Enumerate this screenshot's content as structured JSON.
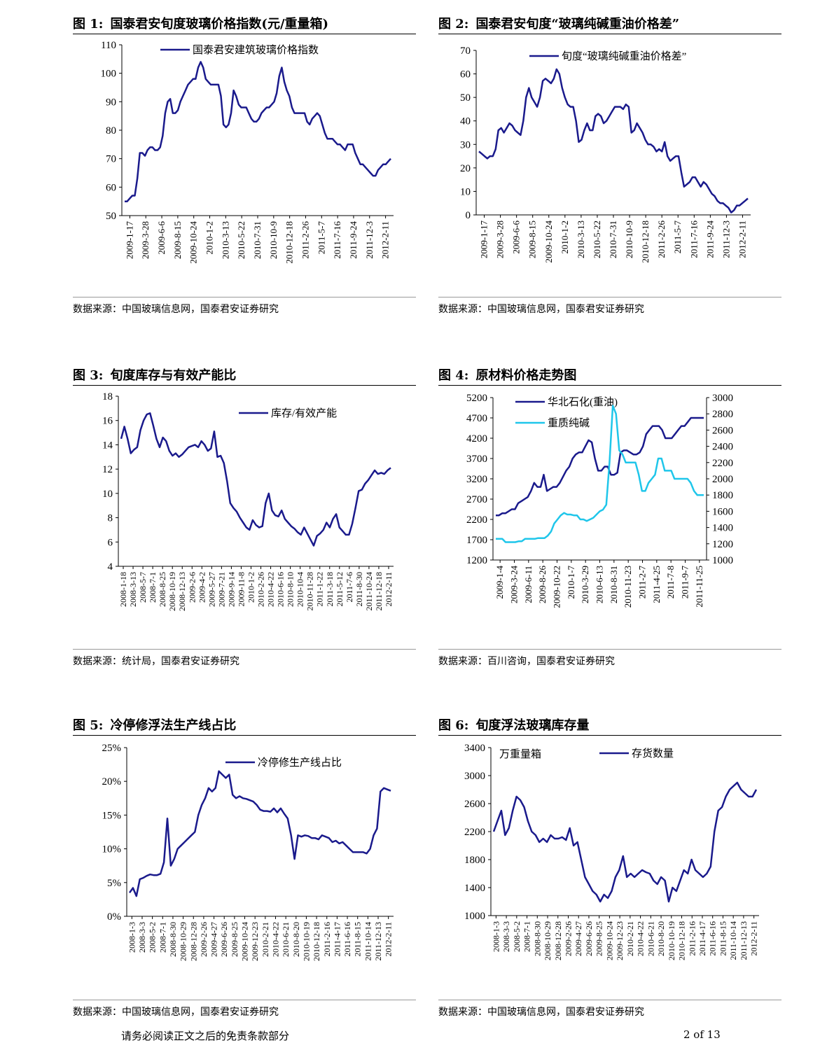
{
  "page": {
    "footer_disclaimer": "请务必阅读正文之后的免责条款部分",
    "page_number": "2 of 13"
  },
  "charts": [
    {
      "label": "图 1:",
      "title": "国泰君安旬度玻璃价格指数(元/重量箱)",
      "source": "数据来源：中国玻璃信息网，国泰君安证券研究"
    },
    {
      "label": "图 2:",
      "title": "国泰君安旬度“玻璃纯碱重油价格差”",
      "source": "数据来源：中国玻璃信息网，国泰君安证券研究"
    },
    {
      "label": "图 3:",
      "title": "旬度库存与有效产能比",
      "source": "数据来源：统计局，国泰君安证券研究"
    },
    {
      "label": "图 4:",
      "title": "原材料价格走势图",
      "source": "数据来源：百川咨询，国泰君安证券研究"
    },
    {
      "label": "图 5:",
      "title": "冷停修浮法生产线占比",
      "source": "数据来源：中国玻璃信息网，国泰君安证券研究"
    },
    {
      "label": "图 6:",
      "title": "旬度浮法玻璃库存量",
      "source": "数据来源：中国玻璃信息网，国泰君安证券研究"
    }
  ],
  "chart_data": [
    {
      "type": "line",
      "yticks": [
        "50",
        "60",
        "70",
        "80",
        "90",
        "100",
        "110"
      ],
      "ylim": [
        50,
        110
      ],
      "xticks": [
        "2009-1-17",
        "2009-3-28",
        "2009-6-6",
        "2009-8-15",
        "2009-10-24",
        "2010-1-2",
        "2010-3-13",
        "2010-5-22",
        "2010-7-31",
        "2010-10-9",
        "2010-12-18",
        "2011-2-26",
        "2011-5-7",
        "2011-7-16",
        "2011-9-24",
        "2011-12-3",
        "2012-2-11"
      ],
      "series": [
        {
          "name": "国泰君安建筑玻璃价格指数",
          "color": "#1a1a8c",
          "values": [
            55,
            55,
            56,
            57,
            57,
            63,
            72,
            72,
            71,
            73,
            74,
            74,
            73,
            73,
            74,
            78,
            86,
            90,
            91,
            86,
            86,
            87,
            90,
            92,
            94,
            96,
            97,
            98,
            98,
            102,
            104,
            102,
            98,
            97,
            96,
            96,
            96,
            96,
            92,
            82,
            81,
            82,
            86,
            94,
            92,
            89,
            88,
            88,
            88,
            86,
            84,
            83,
            83,
            84,
            86,
            87,
            88,
            88,
            89,
            90,
            93,
            99,
            102,
            97,
            94,
            92,
            88,
            86,
            86,
            86,
            86,
            86,
            83,
            82,
            84,
            85,
            86,
            85,
            82,
            79,
            77,
            77,
            77,
            76,
            75,
            75,
            74,
            73,
            75,
            75,
            75,
            72,
            70,
            68,
            68,
            67,
            66,
            65,
            64,
            64,
            66,
            67,
            68,
            68,
            69,
            70
          ]
        }
      ]
    },
    {
      "type": "line",
      "yticks": [
        "0",
        "10",
        "20",
        "30",
        "40",
        "50",
        "60",
        "70"
      ],
      "ylim": [
        0,
        70
      ],
      "xticks": [
        "2009-1-17",
        "2009-3-28",
        "2009-6-6",
        "2009-8-15",
        "2009-10-24",
        "2010-1-2",
        "2010-3-13",
        "2010-5-22",
        "2010-7-31",
        "2010-10-9",
        "2010-12-18",
        "2011-2-26",
        "2011-5-7",
        "2011-7-16",
        "2011-9-24",
        "2011-12-3",
        "2012-2-11"
      ],
      "series": [
        {
          "name": "旬度“玻璃纯碱重油价格差”",
          "color": "#1a1a8c",
          "values": [
            27,
            26,
            25,
            24,
            25,
            25,
            28,
            36,
            37,
            35,
            37,
            39,
            38,
            36,
            35,
            34,
            40,
            50,
            54,
            50,
            48,
            46,
            50,
            57,
            58,
            57,
            56,
            58,
            62,
            60,
            54,
            50,
            47,
            46,
            46,
            40,
            31,
            32,
            36,
            39,
            36,
            36,
            42,
            43,
            42,
            39,
            40,
            42,
            44,
            46,
            46,
            46,
            45,
            47,
            46,
            35,
            36,
            39,
            37,
            35,
            32,
            30,
            30,
            29,
            27,
            28,
            27,
            31,
            25,
            23,
            24,
            25,
            25,
            18,
            12,
            13,
            14,
            16,
            16,
            14,
            12,
            14,
            13,
            11,
            9,
            8,
            6,
            5,
            5,
            4,
            3,
            1,
            2,
            4,
            4,
            5,
            6,
            7
          ]
        }
      ]
    },
    {
      "type": "line",
      "yticks": [
        "4",
        "6",
        "8",
        "10",
        "12",
        "14",
        "16",
        "18"
      ],
      "ylim": [
        4,
        18
      ],
      "xticks": [
        "2008-1-18",
        "2008-3-13",
        "2008-5-7",
        "2008-7-1",
        "2008-8-25",
        "2008-10-19",
        "2008-12-13",
        "2009-2-6",
        "2009-4-2",
        "2009-5-27",
        "2009-7-21",
        "2009-9-14",
        "2009-11-8",
        "2010-1-2",
        "2010-2-26",
        "2010-4-22",
        "2010-6-16",
        "2010-8-10",
        "2010-10-4",
        "2010-11-28",
        "2011-1-22",
        "2011-3-18",
        "2011-5-12",
        "2011-7-6",
        "2011-8-30",
        "2011-10-24",
        "2011-12-18",
        "2012-2-11"
      ],
      "series": [
        {
          "name": "库存/有效产能",
          "color": "#1a1a8c",
          "values": [
            14.5,
            15.5,
            14.5,
            13.3,
            13.6,
            13.8,
            15.2,
            16.0,
            16.5,
            16.6,
            15.6,
            14.5,
            13.8,
            14.6,
            14.3,
            13.5,
            13.1,
            13.3,
            13.0,
            13.2,
            13.5,
            13.8,
            13.9,
            14.0,
            13.8,
            14.3,
            14.0,
            13.5,
            13.7,
            15.1,
            13.0,
            13.1,
            12.5,
            11.0,
            9.2,
            8.8,
            8.5,
            8.0,
            7.6,
            7.2,
            7.0,
            7.8,
            7.4,
            7.2,
            7.3,
            9.2,
            10.0,
            8.6,
            8.2,
            8.1,
            8.6,
            7.9,
            7.6,
            7.3,
            7.1,
            6.8,
            6.6,
            7.2,
            6.7,
            6.2,
            5.7,
            6.5,
            6.7,
            7.0,
            7.6,
            7.2,
            7.9,
            8.3,
            7.2,
            6.9,
            6.6,
            6.6,
            7.5,
            8.8,
            10.2,
            10.3,
            10.8,
            11.1,
            11.5,
            11.9,
            11.6,
            11.7,
            11.6,
            11.9,
            12.1
          ]
        }
      ]
    },
    {
      "type": "line",
      "dual_axis": true,
      "yticks": [
        "1200",
        "1700",
        "2200",
        "2700",
        "3200",
        "3700",
        "4200",
        "4700",
        "5200"
      ],
      "ylim": [
        1200,
        5200
      ],
      "yticks_right": [
        "1000",
        "1200",
        "1400",
        "1600",
        "1800",
        "2000",
        "2200",
        "2400",
        "2600",
        "2800",
        "3000"
      ],
      "ylim_right": [
        1000,
        3000
      ],
      "xticks": [
        "2009-1-4",
        "2009-3-24",
        "2009-6-11",
        "2009-8-26",
        "2009-10-22",
        "2010-1-7",
        "2010-3-29",
        "2010-6-13",
        "2010-8-31",
        "2010-11-23",
        "2011-2-7",
        "2011-4-25",
        "2011-7-8",
        "2011-9-7",
        "2011-11-25"
      ],
      "series": [
        {
          "name": "华北石化(重油)",
          "color": "#1a1a8c",
          "axis": "left",
          "values": [
            2300,
            2300,
            2350,
            2350,
            2400,
            2450,
            2450,
            2600,
            2650,
            2700,
            2750,
            2900,
            3100,
            3000,
            3000,
            3300,
            2900,
            2950,
            3000,
            3000,
            3100,
            3250,
            3400,
            3500,
            3700,
            3800,
            3850,
            3850,
            4000,
            4150,
            4100,
            3700,
            3400,
            3400,
            3500,
            3500,
            3300,
            3300,
            3350,
            3850,
            3900,
            3900,
            3850,
            3800,
            3800,
            3850,
            4000,
            4300,
            4400,
            4500,
            4500,
            4500,
            4400,
            4200,
            4200,
            4200,
            4300,
            4400,
            4500,
            4500,
            4600,
            4700,
            4700,
            4700,
            4700,
            4700
          ]
        },
        {
          "name": "重质纯碱",
          "color": "#1fc6ea",
          "axis": "right",
          "values": [
            1260,
            1260,
            1260,
            1220,
            1220,
            1220,
            1220,
            1230,
            1230,
            1260,
            1260,
            1260,
            1260,
            1270,
            1270,
            1270,
            1300,
            1350,
            1450,
            1500,
            1550,
            1580,
            1560,
            1560,
            1550,
            1550,
            1500,
            1500,
            1480,
            1500,
            1520,
            1560,
            1600,
            1620,
            1680,
            2200,
            2900,
            2800,
            2350,
            2300,
            2200,
            2200,
            2200,
            2200,
            2050,
            1850,
            1850,
            1950,
            2000,
            2050,
            2250,
            2250,
            2100,
            2100,
            2100,
            2000,
            2000,
            2000,
            2000,
            2000,
            1950,
            1850,
            1800,
            1800,
            1800
          ]
        }
      ]
    },
    {
      "type": "line",
      "yticks": [
        "0%",
        "5%",
        "10%",
        "15%",
        "20%",
        "25%"
      ],
      "ylim": [
        0,
        25
      ],
      "xticks": [
        "2008-1-3",
        "2008-3-3",
        "2008-5-2",
        "2008-7-1",
        "2008-8-30",
        "2008-10-29",
        "2008-12-28",
        "2009-2-26",
        "2009-4-27",
        "2009-6-26",
        "2009-8-25",
        "2009-10-24",
        "2009-12-23",
        "2010-2-21",
        "2010-4-22",
        "2010-6-21",
        "2010-8-20",
        "2010-10-19",
        "2010-12-18",
        "2011-2-16",
        "2011-4-17",
        "2011-6-16",
        "2011-8-15",
        "2011-10-14",
        "2011-12-13",
        "2012-2-11"
      ],
      "series": [
        {
          "name": "冷停修生产线占比",
          "color": "#1a1a8c",
          "values": [
            3.5,
            4.2,
            3.0,
            5.5,
            5.7,
            6.0,
            6.2,
            6.1,
            6.1,
            6.3,
            8.0,
            14.5,
            7.5,
            8.5,
            10.0,
            10.5,
            11.0,
            11.5,
            12.0,
            12.5,
            15.0,
            16.5,
            17.5,
            19.0,
            18.5,
            19.0,
            21.5,
            21.0,
            20.5,
            21.0,
            18.0,
            17.5,
            17.8,
            17.5,
            17.4,
            17.2,
            17.0,
            16.5,
            15.8,
            15.6,
            15.6,
            15.5,
            16.0,
            15.4,
            16.0,
            15.2,
            14.5,
            12.0,
            8.5,
            12.0,
            11.8,
            12.0,
            11.9,
            11.6,
            11.6,
            11.4,
            12.0,
            11.8,
            11.6,
            11.0,
            11.2,
            10.8,
            11.0,
            10.5,
            10.0,
            9.5,
            9.5,
            9.5,
            9.5,
            9.3,
            10.0,
            12.0,
            13.0,
            18.5,
            19.0,
            18.8,
            18.6
          ]
        }
      ]
    },
    {
      "type": "line",
      "yticks": [
        "1000",
        "1400",
        "1800",
        "2200",
        "2600",
        "3000",
        "3400"
      ],
      "ylim": [
        1000,
        3400
      ],
      "unit_label": "万重量箱",
      "xticks": [
        "2008-1-3",
        "2008-3-3",
        "2008-5-2",
        "2008-7-1",
        "2008-8-30",
        "2008-10-29",
        "2008-12-28",
        "2009-2-26",
        "2009-4-27",
        "2009-6-26",
        "2009-8-25",
        "2009-10-24",
        "2009-12-23",
        "2010-2-21",
        "2010-4-22",
        "2010-6-21",
        "2010-8-20",
        "2010-10-19",
        "2010-12-18",
        "2011-2-16",
        "2011-4-17",
        "2011-6-16",
        "2011-8-15",
        "2011-10-14",
        "2011-12-13",
        "2012-2-11"
      ],
      "series": [
        {
          "name": "存货数量",
          "color": "#1a1a8c",
          "values": [
            2200,
            2350,
            2500,
            2150,
            2250,
            2500,
            2700,
            2650,
            2550,
            2350,
            2200,
            2150,
            2050,
            2100,
            2050,
            2150,
            2100,
            2100,
            2120,
            2080,
            2250,
            2000,
            2050,
            1800,
            1550,
            1450,
            1350,
            1300,
            1200,
            1300,
            1250,
            1350,
            1550,
            1650,
            1850,
            1550,
            1600,
            1550,
            1600,
            1650,
            1620,
            1600,
            1500,
            1450,
            1550,
            1500,
            1200,
            1400,
            1350,
            1500,
            1650,
            1600,
            1800,
            1650,
            1600,
            1550,
            1600,
            1700,
            2200,
            2500,
            2550,
            2700,
            2800,
            2850,
            2900,
            2800,
            2750,
            2700,
            2700,
            2800
          ]
        }
      ]
    }
  ]
}
